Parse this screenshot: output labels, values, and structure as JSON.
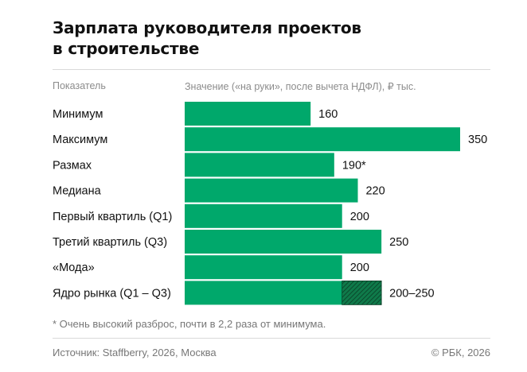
{
  "title_lines": [
    "Зарплата руководителя проектов",
    "в строительстве"
  ],
  "column_headers": {
    "indicator": "Показатель",
    "value": "Значение («на руки», после вычета НДФЛ), ₽ тыс."
  },
  "chart_data": {
    "type": "bar",
    "orientation": "horizontal",
    "title": "Зарплата руководителя проектов в строительстве",
    "unit": "₽ тыс.",
    "xlim": [
      0,
      350
    ],
    "categories": [
      "Минимум",
      "Максимум",
      "Размах",
      "Медиана",
      "Первый квартиль (Q1)",
      "Третий квартиль (Q3)",
      "«Мода»",
      "Ядро рынка (Q1 – Q3)"
    ],
    "values": [
      160,
      350,
      190,
      220,
      200,
      250,
      200,
      200
    ],
    "range_end": [
      null,
      null,
      null,
      null,
      null,
      null,
      null,
      250
    ],
    "value_labels": [
      "160",
      "350",
      "190*",
      "220",
      "200",
      "250",
      "200",
      "200–250"
    ],
    "bar_color": "#00a86b",
    "range_color": "#0f7a4a"
  },
  "footnote": "* Очень высокий разброс, почти в 2,2 раза от минимума.",
  "source": "Источник: Staffberry, 2026, Москва",
  "copyright": "© РБК, 2026"
}
